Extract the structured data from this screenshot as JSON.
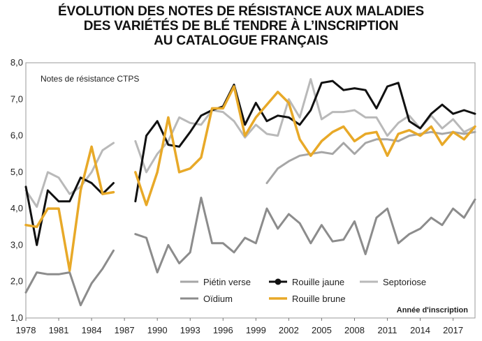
{
  "title_lines": [
    "ÉVOLUTION DES NOTES DE RÉSISTANCE AUX MALADIES",
    "DES VARIÉTÉS DE BLÉ TENDRE À L’INSCRIPTION",
    "AU CATALOGUE FRANÇAIS"
  ],
  "chart_data": {
    "type": "line",
    "title": "ÉVOLUTION DES NOTES DE RÉSISTANCE AUX MALADIES DES VARIÉTÉS DE BLÉ TENDRE À L’INSCRIPTION AU CATALOGUE FRANÇAIS",
    "ylabel": "Notes de résistance CTPS",
    "xlabel": "Année d'inscription",
    "xlim": [
      1978,
      2019
    ],
    "ylim": [
      1.0,
      8.0
    ],
    "x_ticks": [
      "1978",
      "1981",
      "1984",
      "1987",
      "1990",
      "1993",
      "1996",
      "1999",
      "2002",
      "2005",
      "2008",
      "2011",
      "2014",
      "2017"
    ],
    "y_ticks": [
      "1,0",
      "2,0",
      "3,0",
      "4,0",
      "5,0",
      "6,0",
      "7,0",
      "8,0"
    ],
    "grid": false,
    "legend_position": "bottom-right",
    "x": [
      1978,
      1979,
      1980,
      1981,
      1982,
      1983,
      1984,
      1985,
      1986,
      1987,
      1988,
      1989,
      1990,
      1991,
      1992,
      1993,
      1994,
      1995,
      1996,
      1997,
      1998,
      1999,
      2000,
      2001,
      2002,
      2003,
      2004,
      2005,
      2006,
      2007,
      2008,
      2009,
      2010,
      2011,
      2012,
      2013,
      2014,
      2015,
      2016,
      2017,
      2018,
      2019
    ],
    "series": [
      {
        "name": "Piétin verse",
        "color": "#a6a6a6",
        "width": 3,
        "values": [
          null,
          null,
          null,
          null,
          null,
          null,
          null,
          null,
          null,
          null,
          null,
          null,
          null,
          null,
          null,
          null,
          null,
          null,
          null,
          null,
          null,
          null,
          4.7,
          5.1,
          5.3,
          5.45,
          5.5,
          5.55,
          5.5,
          5.8,
          5.5,
          5.8,
          5.9,
          5.9,
          5.85,
          6.0,
          6.05,
          6.1,
          6.05,
          6.1,
          6.05,
          6.1
        ]
      },
      {
        "name": "Rouille jaune",
        "color": "#111111",
        "width": 3,
        "values": [
          4.6,
          3.0,
          4.5,
          4.2,
          4.2,
          4.85,
          4.7,
          4.4,
          4.7,
          null,
          4.2,
          6.0,
          6.4,
          5.75,
          5.7,
          6.1,
          6.55,
          6.7,
          6.8,
          7.4,
          6.3,
          6.9,
          6.4,
          6.55,
          6.5,
          6.3,
          6.7,
          7.45,
          7.5,
          7.25,
          7.3,
          7.25,
          6.75,
          7.35,
          7.45,
          6.4,
          6.2,
          6.6,
          6.85,
          6.6,
          6.7,
          6.6
        ]
      },
      {
        "name": "Septoriose",
        "color": "#b9b9b9",
        "width": 3,
        "values": [
          4.5,
          4.05,
          5.0,
          4.85,
          4.4,
          4.6,
          5.0,
          5.6,
          5.8,
          null,
          5.85,
          5.0,
          5.5,
          5.85,
          6.5,
          6.35,
          6.3,
          6.7,
          6.65,
          6.4,
          5.95,
          6.3,
          6.05,
          6.0,
          7.0,
          6.5,
          7.55,
          6.45,
          6.65,
          6.65,
          6.7,
          6.5,
          6.5,
          6.0,
          6.35,
          6.55,
          6.2,
          6.55,
          6.2,
          6.45,
          6.1,
          6.25
        ]
      },
      {
        "name": "Oïdium",
        "color": "#8c8c8c",
        "width": 3,
        "values": [
          1.7,
          2.25,
          2.2,
          2.2,
          2.25,
          1.35,
          1.95,
          2.35,
          2.85,
          null,
          3.3,
          3.2,
          2.25,
          3.0,
          2.5,
          2.8,
          4.3,
          3.05,
          3.05,
          2.8,
          3.2,
          3.05,
          4.0,
          3.45,
          3.85,
          3.6,
          3.05,
          3.55,
          3.1,
          3.15,
          3.65,
          2.75,
          3.75,
          4.0,
          3.05,
          3.3,
          3.45,
          3.75,
          3.55,
          4.0,
          3.75,
          4.25
        ]
      },
      {
        "name": "Rouille brune",
        "color": "#e8a928",
        "width": 3.5,
        "values": [
          3.55,
          3.5,
          4.0,
          4.0,
          2.3,
          4.5,
          5.7,
          4.4,
          4.45,
          null,
          5.0,
          4.1,
          5.0,
          6.5,
          5.0,
          5.1,
          5.4,
          6.75,
          6.75,
          7.35,
          6.0,
          6.5,
          6.85,
          7.2,
          6.9,
          5.9,
          5.45,
          5.85,
          6.1,
          6.25,
          5.85,
          6.05,
          6.1,
          5.45,
          6.05,
          6.15,
          6.0,
          6.25,
          5.75,
          6.1,
          5.9,
          6.25
        ]
      }
    ]
  }
}
